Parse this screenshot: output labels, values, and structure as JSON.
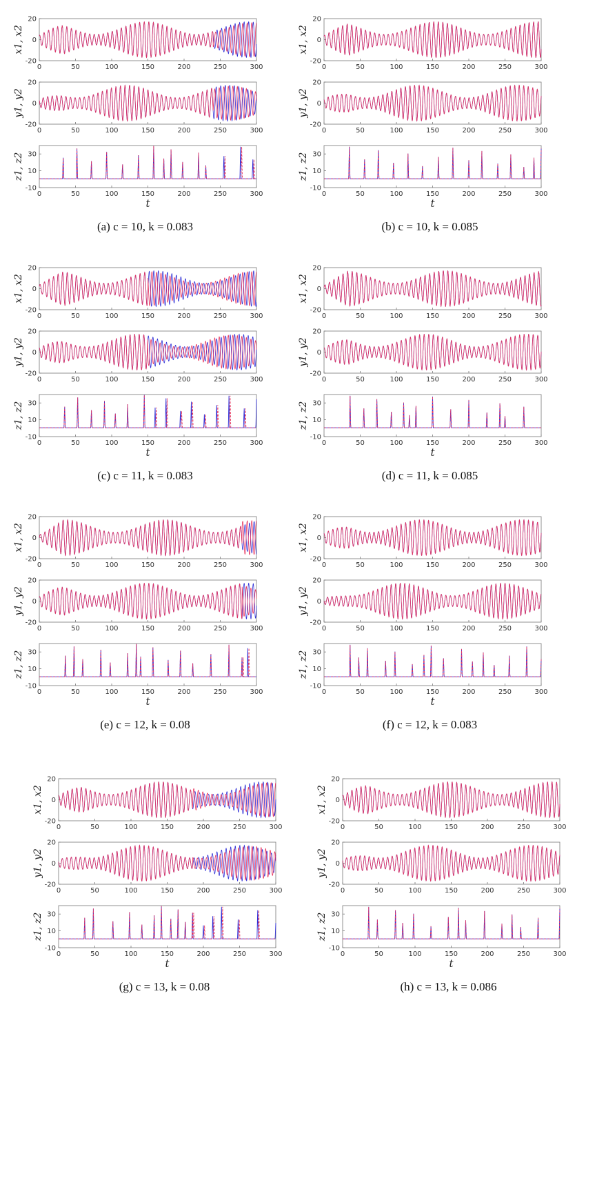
{
  "colors": {
    "series1": "#2f2fd6",
    "series2": "#e8335c",
    "axis": "#777777"
  },
  "panel_labels": {
    "x": "x1, x2",
    "y": "y1, y2",
    "z": "z1, z2",
    "t": "t"
  },
  "chart_data": [
    {
      "type": "line",
      "id": "a",
      "caption": "(a)  c = 10, k = 0.083",
      "c": 10,
      "k": 0.083,
      "xlim": [
        0,
        300
      ],
      "xticks": [
        0,
        50,
        100,
        150,
        200,
        250,
        300
      ],
      "series": [
        {
          "values": "x1,y1,z1"
        },
        {
          "values": "x2,y2,z2"
        }
      ],
      "panels": [
        {
          "var": "x1, x2",
          "ylim": [
            -20,
            20
          ],
          "yticks": [
            -20,
            0,
            20
          ]
        },
        {
          "var": "y1, y2",
          "ylim": [
            -20,
            20
          ],
          "yticks": [
            -20,
            0,
            20
          ]
        },
        {
          "var": "z1, z2",
          "ylim": [
            -10,
            40
          ],
          "yticks": [
            -10,
            10,
            30
          ]
        }
      ],
      "desync_after": 240,
      "spikes": [
        33,
        52,
        72,
        93,
        115,
        137,
        158,
        172,
        182,
        198,
        220,
        230,
        255,
        278,
        295
      ]
    },
    {
      "type": "line",
      "id": "b",
      "caption": "(b)  c = 10, k = 0.085",
      "c": 10,
      "k": 0.085,
      "xlim": [
        0,
        300
      ],
      "xticks": [
        0,
        50,
        100,
        150,
        200,
        250,
        300
      ],
      "series": [
        {
          "values": "x1,y1,z1"
        },
        {
          "values": "x2,y2,z2"
        }
      ],
      "panels": [
        {
          "var": "x1, x2",
          "ylim": [
            -20,
            20
          ],
          "yticks": [
            -20,
            0,
            20
          ]
        },
        {
          "var": "y1, y2",
          "ylim": [
            -20,
            20
          ],
          "yticks": [
            -20,
            0,
            20
          ]
        },
        {
          "var": "z1, z2",
          "ylim": [
            -10,
            40
          ],
          "yticks": [
            -10,
            10,
            30
          ]
        }
      ],
      "desync_after": 300,
      "spikes": [
        35,
        56,
        75,
        96,
        116,
        136,
        158,
        178,
        200,
        218,
        240,
        258,
        276,
        290,
        300
      ]
    },
    {
      "type": "line",
      "id": "c",
      "caption": "(c)  c = 11, k = 0.083",
      "c": 11,
      "k": 0.083,
      "xlim": [
        0,
        300
      ],
      "xticks": [
        0,
        50,
        100,
        150,
        200,
        250,
        300
      ],
      "series": [
        {
          "values": "x1,y1,z1"
        },
        {
          "values": "x2,y2,z2"
        }
      ],
      "panels": [
        {
          "var": "x1, x2",
          "ylim": [
            -20,
            20
          ],
          "yticks": [
            -20,
            0,
            20
          ]
        },
        {
          "var": "y1, y2",
          "ylim": [
            -20,
            20
          ],
          "yticks": [
            -20,
            0,
            20
          ]
        },
        {
          "var": "z1, z2",
          "ylim": [
            -10,
            40
          ],
          "yticks": [
            -10,
            10,
            30
          ]
        }
      ],
      "desync_after": 150,
      "spikes": [
        35,
        53,
        72,
        90,
        105,
        122,
        145,
        160,
        175,
        195,
        210,
        228,
        245,
        262,
        283,
        300
      ]
    },
    {
      "type": "line",
      "id": "d",
      "caption": "(d)  c = 11, k = 0.085",
      "c": 11,
      "k": 0.085,
      "xlim": [
        0,
        300
      ],
      "xticks": [
        0,
        50,
        100,
        150,
        200,
        250,
        300
      ],
      "series": [
        {
          "values": "x1,y1,z1"
        },
        {
          "values": "x2,y2,z2"
        }
      ],
      "panels": [
        {
          "var": "x1, x2",
          "ylim": [
            -20,
            20
          ],
          "yticks": [
            -20,
            0,
            20
          ]
        },
        {
          "var": "y1, y2",
          "ylim": [
            -20,
            20
          ],
          "yticks": [
            -20,
            0,
            20
          ]
        },
        {
          "var": "z1, z2",
          "ylim": [
            -10,
            40
          ],
          "yticks": [
            -10,
            10,
            30
          ]
        }
      ],
      "desync_after": 300,
      "spikes": [
        36,
        55,
        73,
        93,
        110,
        118,
        127,
        150,
        175,
        200,
        225,
        243,
        250,
        276
      ]
    },
    {
      "type": "line",
      "id": "e",
      "caption": "(e)  c = 12, k = 0.08",
      "c": 12,
      "k": 0.08,
      "xlim": [
        0,
        300
      ],
      "xticks": [
        0,
        50,
        100,
        150,
        200,
        250,
        300
      ],
      "series": [
        {
          "values": "x1,y1,z1"
        },
        {
          "values": "x2,y2,z2"
        }
      ],
      "panels": [
        {
          "var": "x1, x2",
          "ylim": [
            -20,
            20
          ],
          "yticks": [
            -20,
            0,
            20
          ]
        },
        {
          "var": "y1, y2",
          "ylim": [
            -20,
            20
          ],
          "yticks": [
            -20,
            0,
            20
          ]
        },
        {
          "var": "z1, z2",
          "ylim": [
            -10,
            40
          ],
          "yticks": [
            -10,
            10,
            30
          ]
        }
      ],
      "desync_after": 280,
      "spikes": [
        36,
        48,
        60,
        85,
        98,
        122,
        134,
        140,
        157,
        178,
        195,
        212,
        237,
        262,
        280,
        288
      ]
    },
    {
      "type": "line",
      "id": "f",
      "caption": "(f)  c = 12, k = 0.083",
      "c": 12,
      "k": 0.083,
      "xlim": [
        0,
        300
      ],
      "xticks": [
        0,
        50,
        100,
        150,
        200,
        250,
        300
      ],
      "series": [
        {
          "values": "x1,y1,z1"
        },
        {
          "values": "x2,y2,z2"
        }
      ],
      "panels": [
        {
          "var": "x1, x2",
          "ylim": [
            -20,
            20
          ],
          "yticks": [
            -20,
            0,
            20
          ]
        },
        {
          "var": "y1, y2",
          "ylim": [
            -20,
            20
          ],
          "yticks": [
            -20,
            0,
            20
          ]
        },
        {
          "var": "z1, z2",
          "ylim": [
            -10,
            40
          ],
          "yticks": [
            -10,
            10,
            30
          ]
        }
      ],
      "desync_after": 300,
      "spikes": [
        36,
        48,
        60,
        85,
        98,
        122,
        138,
        148,
        165,
        190,
        205,
        220,
        235,
        256,
        280,
        300
      ]
    },
    {
      "type": "line",
      "id": "g",
      "caption": "(g)  c = 13, k = 0.08",
      "c": 13,
      "k": 0.08,
      "xlim": [
        0,
        300
      ],
      "xticks": [
        0,
        50,
        100,
        150,
        200,
        250,
        300
      ],
      "series": [
        {
          "values": "x1,y1,z1"
        },
        {
          "values": "x2,y2,z2"
        }
      ],
      "panels": [
        {
          "var": "x1, x2",
          "ylim": [
            -20,
            20
          ],
          "yticks": [
            -20,
            0,
            20
          ]
        },
        {
          "var": "y1, y2",
          "ylim": [
            -20,
            20
          ],
          "yticks": [
            -20,
            0,
            20
          ]
        },
        {
          "var": "z1, z2",
          "ylim": [
            -10,
            40
          ],
          "yticks": [
            -10,
            10,
            30
          ]
        }
      ],
      "desync_after": 185,
      "spikes": [
        36,
        48,
        75,
        98,
        115,
        132,
        142,
        155,
        165,
        175,
        185,
        200,
        213,
        225,
        248,
        275,
        300
      ]
    },
    {
      "type": "line",
      "id": "h",
      "caption": "(h)  c = 13, k = 0.086",
      "c": 13,
      "k": 0.086,
      "xlim": [
        0,
        300
      ],
      "xticks": [
        0,
        50,
        100,
        150,
        200,
        250,
        300
      ],
      "series": [
        {
          "values": "x1,y1,z1"
        },
        {
          "values": "x2,y2,z2"
        }
      ],
      "panels": [
        {
          "var": "x1, x2",
          "ylim": [
            -20,
            20
          ],
          "yticks": [
            -20,
            0,
            20
          ]
        },
        {
          "var": "y1, y2",
          "ylim": [
            -20,
            20
          ],
          "yticks": [
            -20,
            0,
            20
          ]
        },
        {
          "var": "z1, z2",
          "ylim": [
            -10,
            40
          ],
          "yticks": [
            -10,
            10,
            30
          ]
        }
      ],
      "desync_after": 300,
      "spikes": [
        36,
        48,
        73,
        83,
        98,
        122,
        146,
        160,
        170,
        196,
        220,
        234,
        246,
        270,
        300
      ]
    }
  ]
}
